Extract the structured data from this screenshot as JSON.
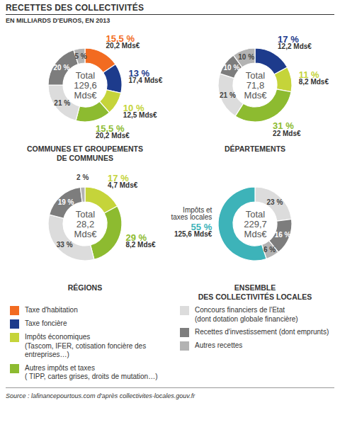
{
  "title": "RECETTES DES COLLECTIVITÉS",
  "subtitle": "EN MILLIARDS D'EUROS, EN 2013",
  "source": "Source : lafinancepourtous.com d'après collectivites-locales.gouv.fr",
  "chart_data": [
    {
      "type": "pie",
      "title": "COMMUNES ET GROUPEMENTS\nDE COMMUNES",
      "total_label": "Total\n129,6\nMds€",
      "categories": [
        "Taxe d'habitation",
        "Taxe foncière",
        "Impôts économiques\n(Tascom, IFER, cotisation foncière des entreprises…)",
        "Autres impôts et taxes\n( TIPP, cartes grises, droits de mutation…)",
        "Concours financiers de l'Etat\n(dont dotation globale financière)",
        "Recettes d'investissement (dont emprunts)",
        "Autres recettes"
      ],
      "values": [
        15.5,
        13,
        10,
        15.5,
        21,
        20,
        5
      ],
      "value_labels": [
        "15,5 %",
        "13 %",
        "10 %",
        "15,5 %",
        "21 %",
        "20 %",
        "5 %"
      ],
      "amounts": [
        20.2,
        17.4,
        12.5,
        20.2,
        null,
        null,
        null
      ],
      "amount_labels": [
        "20,2 Mds€",
        "17,4 Mds€",
        "12,5 Mds€",
        "20,2 Mds€",
        null,
        null,
        null
      ],
      "colors": [
        "#f26b21",
        "#1d3b8c",
        "#c5d43a",
        "#8dbb30",
        "#dcdcdc",
        "#7d7d7d",
        "#b3b3b3"
      ],
      "data_labels": true,
      "legend": "bottom"
    },
    {
      "type": "pie",
      "title": "DÉPARTEMENTS",
      "total_label": "Total\n71,8\nMds€",
      "categories": [
        "Taxe foncière",
        "Impôts économiques\n(Tascom, IFER, cotisation foncière des entreprises…)",
        "Autres impôts et taxes\n( TIPP, cartes grises, droits de mutation…)",
        "Concours financiers de l'Etat\n(dont dotation globale financière)",
        "Recettes d'investissement (dont emprunts)",
        "Autres recettes"
      ],
      "values": [
        17,
        11,
        31,
        21,
        10,
        10
      ],
      "value_labels": [
        "17 %",
        "11 %",
        "31 %",
        "21 %",
        "10 %",
        "10 %"
      ],
      "amounts": [
        12.2,
        8.2,
        22,
        null,
        null,
        null
      ],
      "amount_labels": [
        "12,2 Mds€",
        "8,2 Mds€",
        "22 Mds€",
        null,
        null,
        null
      ],
      "colors": [
        "#1d3b8c",
        "#c5d43a",
        "#8dbb30",
        "#dcdcdc",
        "#7d7d7d",
        "#b3b3b3"
      ],
      "data_labels": true
    },
    {
      "type": "pie",
      "title": "RÉGIONS",
      "total_label": "Total\n28,2\nMds€",
      "categories": [
        "Impôts économiques\n(Tascom, IFER, cotisation foncière des entreprises…)",
        "Autres impôts et taxes\n( TIPP, cartes grises, droits de mutation…)",
        "Concours financiers de l'Etat\n(dont dotation globale financière)",
        "Recettes d'investissement (dont emprunts)",
        "Autres recettes"
      ],
      "values": [
        17,
        29,
        33,
        19,
        2
      ],
      "value_labels": [
        "17 %",
        "29 %",
        "33 %",
        "19 %",
        "2 %"
      ],
      "amounts": [
        4.7,
        8.2,
        null,
        null,
        null
      ],
      "amount_labels": [
        "4,7 Mds€",
        "8,2 Mds€",
        null,
        null,
        null
      ],
      "colors": [
        "#c5d43a",
        "#8dbb30",
        "#dcdcdc",
        "#7d7d7d",
        "#b3b3b3"
      ],
      "data_labels": true
    },
    {
      "type": "pie",
      "title": "ENSEMBLE\nDES COLLECTIVITÉS LOCALES",
      "total_label": "Total\n229,7\nMds€",
      "categories": [
        "Concours financiers de l'Etat\n(dont dotation globale financière)",
        "Recettes d'investissement (dont emprunts)",
        "Autres recettes",
        "Impôts et taxes locales"
      ],
      "values": [
        23,
        16,
        6,
        55
      ],
      "value_labels": [
        "23 %",
        "16 %",
        "6 %",
        "55 %"
      ],
      "amounts": [
        null,
        null,
        null,
        125.6
      ],
      "amount_labels": [
        null,
        null,
        null,
        "125,6 Mds€"
      ],
      "colors": [
        "#dcdcdc",
        "#7d7d7d",
        "#b3b3b3",
        "#3db3b9"
      ],
      "data_labels": true
    }
  ]
}
